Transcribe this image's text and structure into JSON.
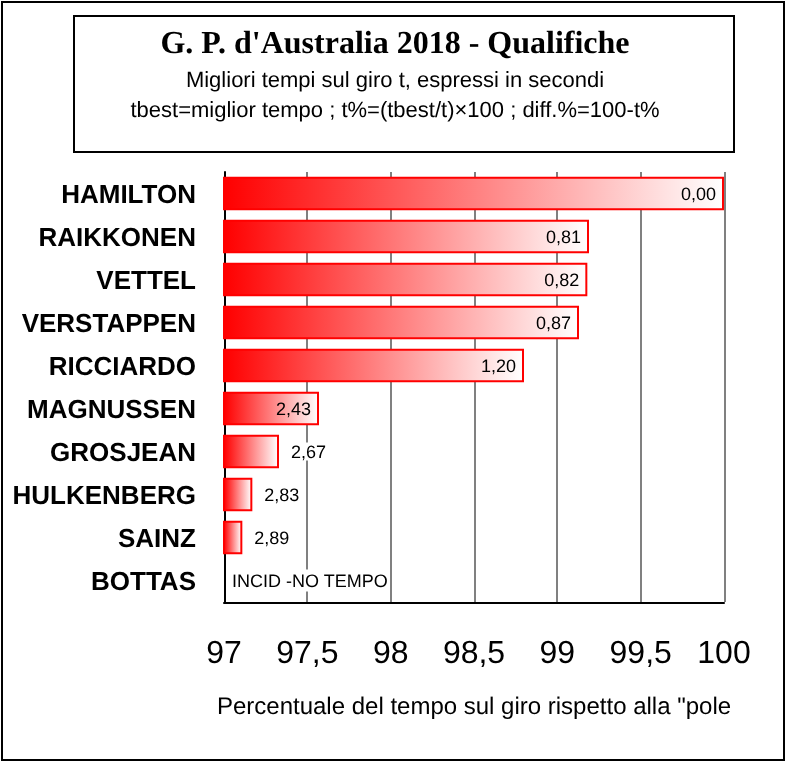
{
  "chart_data": {
    "type": "bar",
    "orientation": "horizontal",
    "title": "G. P. d'Australia 2018 - Qualifiche",
    "subtitle": "Migliori tempi sul giro t, espressi in secondi\ntbest=miglior tempo ; t%=(tbest/t)×100 ; diff.%=100-t%",
    "xlabel": "Percentuale del tempo sul giro rispetto alla \"pole",
    "categories": [
      "HAMILTON",
      "RAIKKONEN",
      "VETTEL",
      "VERSTAPPEN",
      "RICCIARDO",
      "MAGNUSSEN",
      "GROSJEAN",
      "HULKENBERG",
      "SAINZ",
      "BOTTAS"
    ],
    "series": [
      {
        "color": "#ff0000",
        "values": [
          100,
          99.19,
          99.18,
          99.13,
          98.8,
          97.57,
          97.33,
          97.17,
          97.11,
          null
        ]
      }
    ],
    "annotations": [
      {
        "text": "0,00",
        "x": 100,
        "y": "HAMILTON"
      },
      {
        "text": "0,81",
        "x": 99.19,
        "y": "RAIKKONEN"
      },
      {
        "text": "0,82",
        "x": 99.18,
        "y": "VETTEL"
      },
      {
        "text": "0,87",
        "x": 99.13,
        "y": "VERSTAPPEN"
      },
      {
        "text": "1,20",
        "x": 98.8,
        "y": "RICCIARDO"
      },
      {
        "text": "2,43",
        "x": 97.57,
        "y": "MAGNUSSEN"
      },
      {
        "text": "2,67",
        "x": 97.33,
        "y": "GROSJEAN"
      },
      {
        "text": "2,83",
        "x": 97.17,
        "y": "HULKENBERG"
      },
      {
        "text": "2,89",
        "x": 97.11,
        "y": "SAINZ"
      },
      "INCID -NO TEMPO"
    ],
    "xlim": [
      97,
      100
    ],
    "xticks": [
      97,
      {
        "value": 97.5,
        "label": "97,5"
      },
      98,
      {
        "value": 98.5,
        "label": "98,5"
      },
      99,
      {
        "value": 99.5,
        "label": "99,5"
      },
      100
    ],
    "grid": "x"
  }
}
